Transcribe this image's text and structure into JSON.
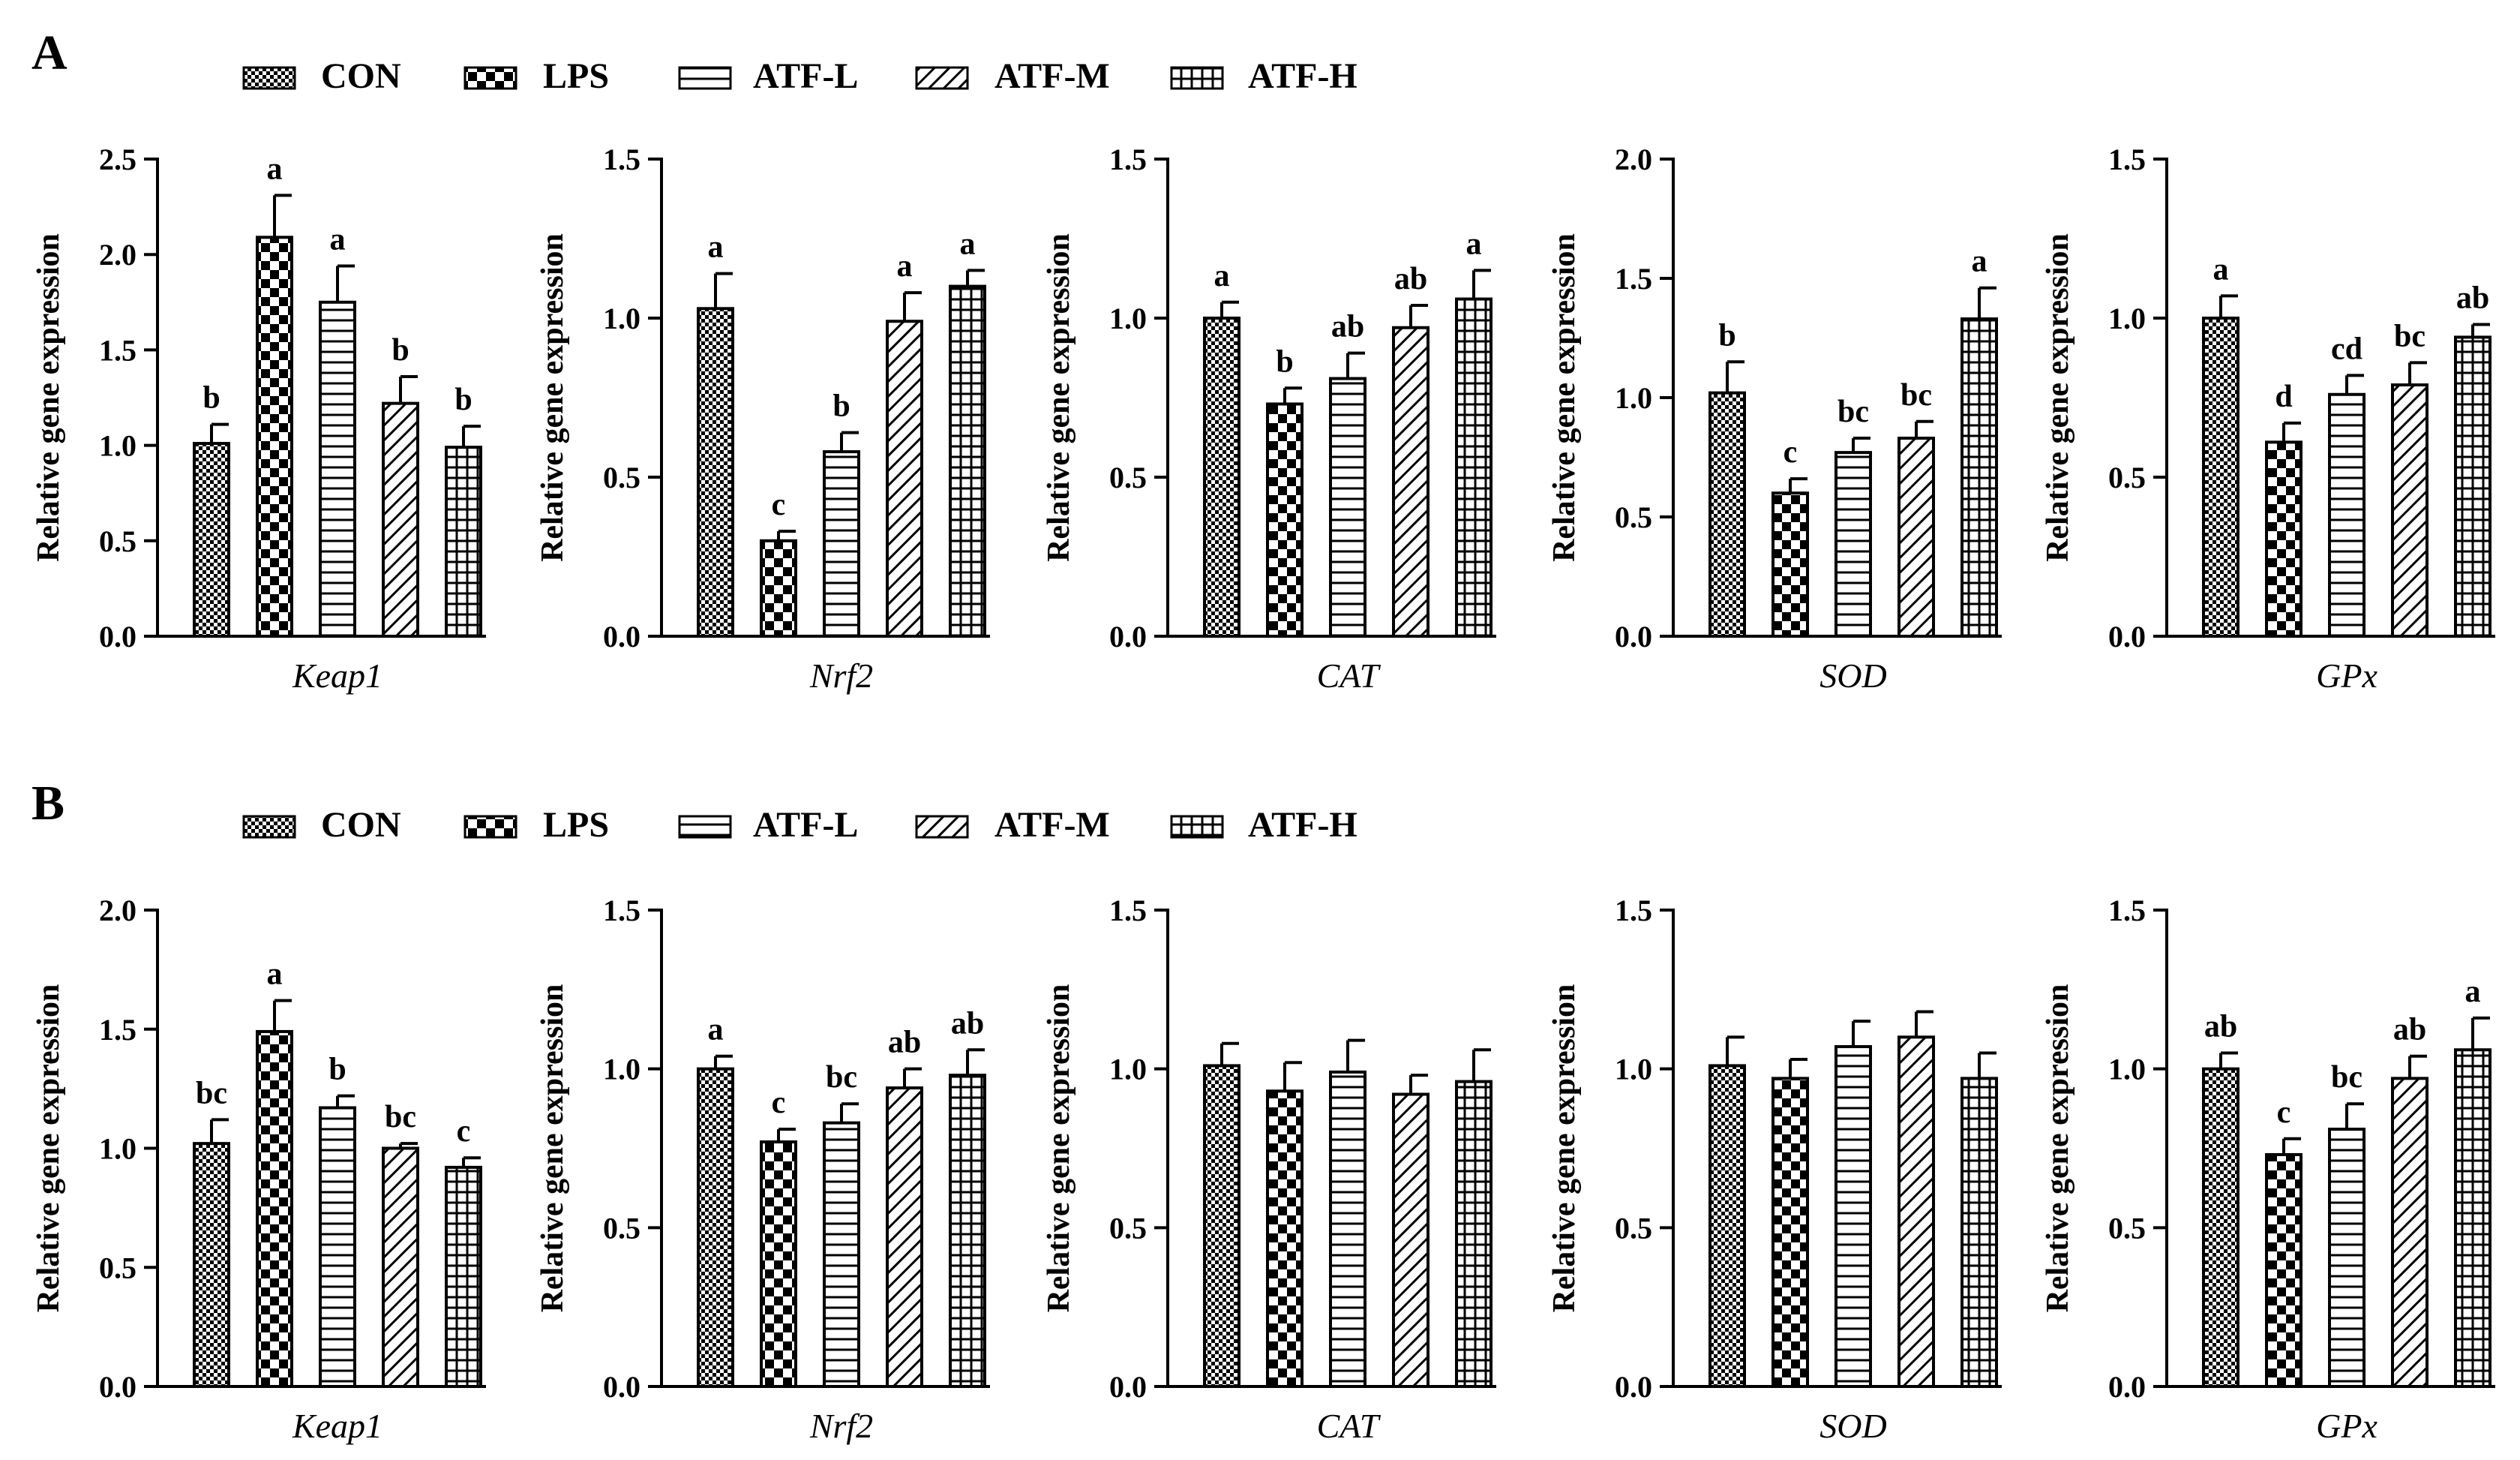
{
  "figure": {
    "series_names": [
      "CON",
      "LPS",
      "ATF-L",
      "ATF-M",
      "ATF-H"
    ],
    "ylabel": "Relative gene expression",
    "panels": [
      {
        "label": "A",
        "legend": [
          "CON",
          "LPS",
          "ATF-L",
          "ATF-M",
          "ATF-H"
        ],
        "charts": [
          {
            "gene": "Keap1"
          },
          {
            "gene": "Nrf2"
          },
          {
            "gene": "CAT"
          },
          {
            "gene": "SOD"
          },
          {
            "gene": "GPx"
          }
        ]
      },
      {
        "label": "B",
        "legend": [
          "CON",
          "LPS",
          "ATF-L",
          "ATF-M",
          "ATF-H"
        ],
        "charts": [
          {
            "gene": "Keap1"
          },
          {
            "gene": "Nrf2"
          },
          {
            "gene": "CAT"
          },
          {
            "gene": "SOD"
          },
          {
            "gene": "GPx"
          }
        ]
      }
    ]
  },
  "chart_data": [
    {
      "panel": "A",
      "type": "bar",
      "xlabel": "Keap1",
      "ylabel": "Relative gene expression",
      "categories": [
        "CON",
        "LPS",
        "ATF-L",
        "ATF-M",
        "ATF-H"
      ],
      "values": [
        1.01,
        2.09,
        1.75,
        1.22,
        0.99
      ],
      "errors": [
        0.1,
        0.22,
        0.19,
        0.14,
        0.11
      ],
      "letters": [
        "b",
        "a",
        "a",
        "b",
        "b"
      ],
      "ylim": [
        0,
        2.5
      ],
      "yticks": [
        "0.0",
        "0.5",
        "1.0",
        "1.5",
        "2.0",
        "2.5"
      ]
    },
    {
      "panel": "A",
      "type": "bar",
      "xlabel": "Nrf2",
      "ylabel": "Relative gene expression",
      "categories": [
        "CON",
        "LPS",
        "ATF-L",
        "ATF-M",
        "ATF-H"
      ],
      "values": [
        1.03,
        0.3,
        0.58,
        0.99,
        1.1
      ],
      "errors": [
        0.11,
        0.03,
        0.06,
        0.09,
        0.05
      ],
      "letters": [
        "a",
        "c",
        "b",
        "a",
        "a"
      ],
      "ylim": [
        0,
        1.5
      ],
      "yticks": [
        "0.0",
        "0.5",
        "1.0",
        "1.5"
      ]
    },
    {
      "panel": "A",
      "type": "bar",
      "xlabel": "CAT",
      "ylabel": "Relative gene expression",
      "categories": [
        "CON",
        "LPS",
        "ATF-L",
        "ATF-M",
        "ATF-H"
      ],
      "values": [
        1.0,
        0.73,
        0.81,
        0.97,
        1.06
      ],
      "errors": [
        0.05,
        0.05,
        0.08,
        0.07,
        0.09
      ],
      "letters": [
        "a",
        "b",
        "ab",
        "ab",
        "a"
      ],
      "ylim": [
        0,
        1.5
      ],
      "yticks": [
        "0.0",
        "0.5",
        "1.0",
        "1.5"
      ]
    },
    {
      "panel": "A",
      "type": "bar",
      "xlabel": "SOD",
      "ylabel": "Relative gene expression",
      "categories": [
        "CON",
        "LPS",
        "ATF-L",
        "ATF-M",
        "ATF-H"
      ],
      "values": [
        1.02,
        0.6,
        0.77,
        0.83,
        1.33
      ],
      "errors": [
        0.13,
        0.06,
        0.06,
        0.07,
        0.13
      ],
      "letters": [
        "b",
        "c",
        "bc",
        "bc",
        "a"
      ],
      "ylim": [
        0,
        2.0
      ],
      "yticks": [
        "0.0",
        "0.5",
        "1.0",
        "1.5",
        "2.0"
      ]
    },
    {
      "panel": "A",
      "type": "bar",
      "xlabel": "GPx",
      "ylabel": "Relative gene expression",
      "categories": [
        "CON",
        "LPS",
        "ATF-L",
        "ATF-M",
        "ATF-H"
      ],
      "values": [
        1.0,
        0.61,
        0.76,
        0.79,
        0.94
      ],
      "errors": [
        0.07,
        0.06,
        0.06,
        0.07,
        0.04
      ],
      "letters": [
        "a",
        "d",
        "cd",
        "bc",
        "ab"
      ],
      "ylim": [
        0,
        1.5
      ],
      "yticks": [
        "0.0",
        "0.5",
        "1.0",
        "1.5"
      ]
    },
    {
      "panel": "B",
      "type": "bar",
      "xlabel": "Keap1",
      "ylabel": "Relative gene expression",
      "categories": [
        "CON",
        "LPS",
        "ATF-L",
        "ATF-M",
        "ATF-H"
      ],
      "values": [
        1.02,
        1.49,
        1.17,
        1.0,
        0.92
      ],
      "errors": [
        0.1,
        0.13,
        0.05,
        0.02,
        0.04
      ],
      "letters": [
        "bc",
        "a",
        "b",
        "bc",
        "c"
      ],
      "ylim": [
        0,
        2.0
      ],
      "yticks": [
        "0.0",
        "0.5",
        "1.0",
        "1.5",
        "2.0"
      ]
    },
    {
      "panel": "B",
      "type": "bar",
      "xlabel": "Nrf2",
      "ylabel": "Relative gene expression",
      "categories": [
        "CON",
        "LPS",
        "ATF-L",
        "ATF-M",
        "ATF-H"
      ],
      "values": [
        1.0,
        0.77,
        0.83,
        0.94,
        0.98
      ],
      "errors": [
        0.04,
        0.04,
        0.06,
        0.06,
        0.08
      ],
      "letters": [
        "a",
        "c",
        "bc",
        "ab",
        "ab"
      ],
      "ylim": [
        0,
        1.5
      ],
      "yticks": [
        "0.0",
        "0.5",
        "1.0",
        "1.5"
      ]
    },
    {
      "panel": "B",
      "type": "bar",
      "xlabel": "CAT",
      "ylabel": "Relative gene expression",
      "categories": [
        "CON",
        "LPS",
        "ATF-L",
        "ATF-M",
        "ATF-H"
      ],
      "values": [
        1.01,
        0.93,
        0.99,
        0.92,
        0.96
      ],
      "errors": [
        0.07,
        0.09,
        0.1,
        0.06,
        0.1
      ],
      "letters": [
        "",
        "",
        "",
        "",
        ""
      ],
      "ylim": [
        0,
        1.5
      ],
      "yticks": [
        "0.0",
        "0.5",
        "1.0",
        "1.5"
      ]
    },
    {
      "panel": "B",
      "type": "bar",
      "xlabel": "SOD",
      "ylabel": "Relative gene expression",
      "categories": [
        "CON",
        "LPS",
        "ATF-L",
        "ATF-M",
        "ATF-H"
      ],
      "values": [
        1.01,
        0.97,
        1.07,
        1.1,
        0.97
      ],
      "errors": [
        0.09,
        0.06,
        0.08,
        0.08,
        0.08
      ],
      "letters": [
        "",
        "",
        "",
        "",
        ""
      ],
      "ylim": [
        0,
        1.5
      ],
      "yticks": [
        "0.0",
        "0.5",
        "1.0",
        "1.5"
      ]
    },
    {
      "panel": "B",
      "type": "bar",
      "xlabel": "GPx",
      "ylabel": "Relative gene expression",
      "categories": [
        "CON",
        "LPS",
        "ATF-L",
        "ATF-M",
        "ATF-H"
      ],
      "values": [
        1.0,
        0.73,
        0.81,
        0.97,
        1.06
      ],
      "errors": [
        0.05,
        0.05,
        0.08,
        0.07,
        0.1
      ],
      "letters": [
        "ab",
        "c",
        "bc",
        "ab",
        "a"
      ],
      "ylim": [
        0,
        1.5
      ],
      "yticks": [
        "0.0",
        "0.5",
        "1.0",
        "1.5"
      ]
    }
  ]
}
